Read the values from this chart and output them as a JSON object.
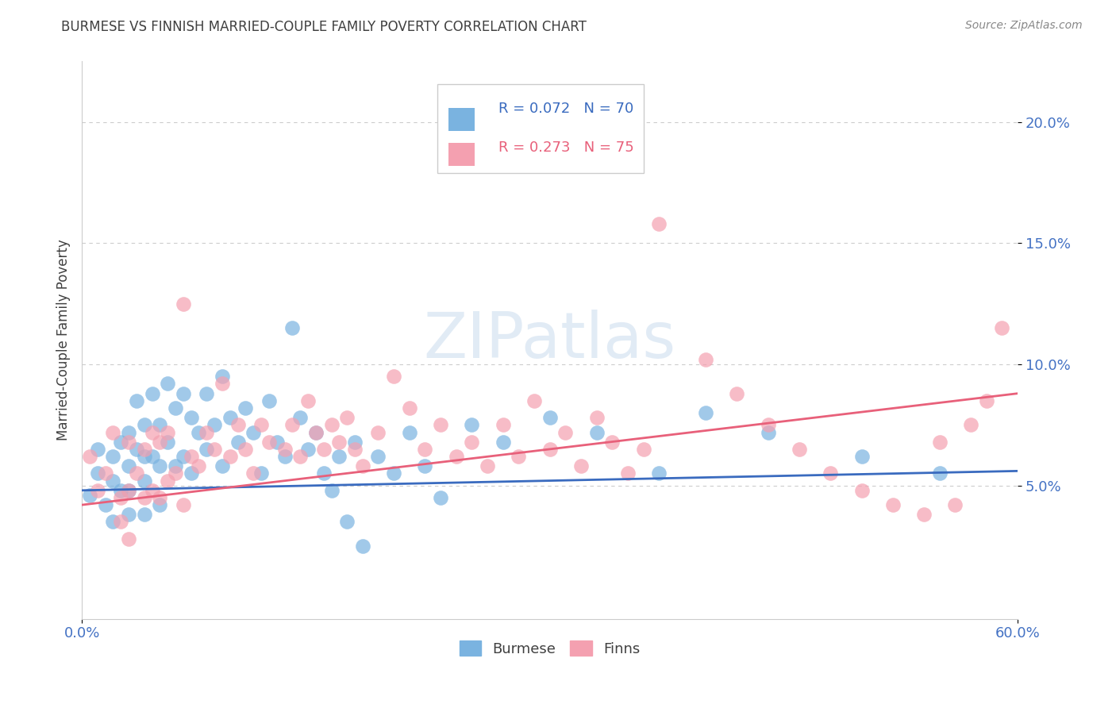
{
  "title": "BURMESE VS FINNISH MARRIED-COUPLE FAMILY POVERTY CORRELATION CHART",
  "source": "Source: ZipAtlas.com",
  "ylabel": "Married-Couple Family Poverty",
  "xlim": [
    0.0,
    0.6
  ],
  "ylim": [
    -0.005,
    0.225
  ],
  "xtick_vals": [
    0.0,
    0.6
  ],
  "xtick_labels": [
    "0.0%",
    "60.0%"
  ],
  "ytick_vals": [
    0.05,
    0.1,
    0.15,
    0.2
  ],
  "ytick_labels": [
    "5.0%",
    "10.0%",
    "15.0%",
    "20.0%"
  ],
  "burmese_color": "#7ab3e0",
  "finns_color": "#f4a0b0",
  "burmese_line_color": "#3a6bbf",
  "finns_line_color": "#e8607a",
  "burmese_R": 0.072,
  "burmese_N": 70,
  "finns_R": 0.273,
  "finns_N": 75,
  "watermark": "ZIPatlas",
  "burmese_x": [
    0.005,
    0.01,
    0.01,
    0.015,
    0.02,
    0.02,
    0.02,
    0.025,
    0.025,
    0.03,
    0.03,
    0.03,
    0.03,
    0.035,
    0.035,
    0.04,
    0.04,
    0.04,
    0.04,
    0.045,
    0.045,
    0.05,
    0.05,
    0.05,
    0.055,
    0.055,
    0.06,
    0.06,
    0.065,
    0.065,
    0.07,
    0.07,
    0.075,
    0.08,
    0.08,
    0.085,
    0.09,
    0.09,
    0.095,
    0.1,
    0.105,
    0.11,
    0.115,
    0.12,
    0.125,
    0.13,
    0.135,
    0.14,
    0.145,
    0.15,
    0.155,
    0.16,
    0.165,
    0.17,
    0.175,
    0.18,
    0.19,
    0.2,
    0.21,
    0.22,
    0.23,
    0.25,
    0.27,
    0.3,
    0.33,
    0.37,
    0.4,
    0.44,
    0.5,
    0.55
  ],
  "burmese_y": [
    0.046,
    0.065,
    0.055,
    0.042,
    0.062,
    0.052,
    0.035,
    0.068,
    0.048,
    0.072,
    0.058,
    0.048,
    0.038,
    0.085,
    0.065,
    0.075,
    0.062,
    0.052,
    0.038,
    0.088,
    0.062,
    0.075,
    0.058,
    0.042,
    0.092,
    0.068,
    0.082,
    0.058,
    0.088,
    0.062,
    0.078,
    0.055,
    0.072,
    0.088,
    0.065,
    0.075,
    0.095,
    0.058,
    0.078,
    0.068,
    0.082,
    0.072,
    0.055,
    0.085,
    0.068,
    0.062,
    0.115,
    0.078,
    0.065,
    0.072,
    0.055,
    0.048,
    0.062,
    0.035,
    0.068,
    0.025,
    0.062,
    0.055,
    0.072,
    0.058,
    0.045,
    0.075,
    0.068,
    0.078,
    0.072,
    0.055,
    0.08,
    0.072,
    0.062,
    0.055
  ],
  "finns_x": [
    0.005,
    0.01,
    0.015,
    0.02,
    0.025,
    0.025,
    0.03,
    0.03,
    0.03,
    0.035,
    0.04,
    0.04,
    0.045,
    0.045,
    0.05,
    0.05,
    0.055,
    0.055,
    0.06,
    0.065,
    0.065,
    0.07,
    0.075,
    0.08,
    0.085,
    0.09,
    0.095,
    0.1,
    0.105,
    0.11,
    0.115,
    0.12,
    0.13,
    0.135,
    0.14,
    0.145,
    0.15,
    0.155,
    0.16,
    0.165,
    0.17,
    0.175,
    0.18,
    0.19,
    0.2,
    0.21,
    0.22,
    0.23,
    0.24,
    0.25,
    0.26,
    0.27,
    0.28,
    0.29,
    0.3,
    0.31,
    0.32,
    0.33,
    0.34,
    0.35,
    0.36,
    0.37,
    0.4,
    0.42,
    0.44,
    0.46,
    0.48,
    0.5,
    0.52,
    0.54,
    0.55,
    0.56,
    0.57,
    0.58,
    0.59
  ],
  "finns_y": [
    0.062,
    0.048,
    0.055,
    0.072,
    0.045,
    0.035,
    0.068,
    0.048,
    0.028,
    0.055,
    0.065,
    0.045,
    0.072,
    0.048,
    0.068,
    0.045,
    0.072,
    0.052,
    0.055,
    0.125,
    0.042,
    0.062,
    0.058,
    0.072,
    0.065,
    0.092,
    0.062,
    0.075,
    0.065,
    0.055,
    0.075,
    0.068,
    0.065,
    0.075,
    0.062,
    0.085,
    0.072,
    0.065,
    0.075,
    0.068,
    0.078,
    0.065,
    0.058,
    0.072,
    0.095,
    0.082,
    0.065,
    0.075,
    0.062,
    0.068,
    0.058,
    0.075,
    0.062,
    0.085,
    0.065,
    0.072,
    0.058,
    0.078,
    0.068,
    0.055,
    0.065,
    0.158,
    0.102,
    0.088,
    0.075,
    0.065,
    0.055,
    0.048,
    0.042,
    0.038,
    0.068,
    0.042,
    0.075,
    0.085,
    0.115
  ],
  "background_color": "#ffffff",
  "grid_color": "#cccccc",
  "tick_color": "#4472c4",
  "title_color": "#404040",
  "ylabel_color": "#404040"
}
